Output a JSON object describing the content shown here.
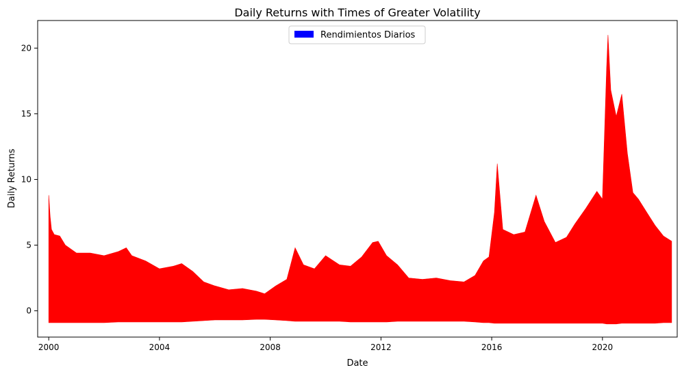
{
  "chart_data": {
    "type": "area",
    "title": "Daily Returns with Times of Greater Volatility",
    "xlabel": "Date",
    "ylabel": "Daily Returns",
    "xlim": [
      1999.6,
      2022.7
    ],
    "ylim": [
      -2.0,
      22.1
    ],
    "x_ticks": [
      "2000",
      "2004",
      "2008",
      "2012",
      "2016",
      "2020"
    ],
    "x_tick_values": [
      2000,
      2004,
      2008,
      2012,
      2016,
      2020
    ],
    "y_ticks": [
      "0",
      "5",
      "10",
      "15",
      "20"
    ],
    "y_tick_values": [
      0,
      5,
      10,
      15,
      20
    ],
    "grid": false,
    "legend": {
      "position": "top-center",
      "entries": [
        {
          "label": "Rendimientos Diarios",
          "color": "#0000ff"
        }
      ]
    },
    "colors": {
      "fill": "#ff0000",
      "legend_patch": "#0000ff"
    },
    "series": [
      {
        "name": "Rendimientos Diarios",
        "x": [
          2000.0,
          2000.05,
          2000.1,
          2000.2,
          2000.4,
          2000.6,
          2001.0,
          2001.5,
          2002.0,
          2002.5,
          2002.8,
          2003.0,
          2003.5,
          2004.0,
          2004.5,
          2004.8,
          2005.2,
          2005.6,
          2006.0,
          2006.5,
          2007.0,
          2007.5,
          2007.8,
          2008.2,
          2008.6,
          2008.9,
          2009.2,
          2009.6,
          2010.0,
          2010.5,
          2010.9,
          2011.3,
          2011.7,
          2011.9,
          2012.2,
          2012.6,
          2013.0,
          2013.5,
          2014.0,
          2014.5,
          2015.0,
          2015.4,
          2015.7,
          2015.9,
          2016.1,
          2016.2,
          2016.4,
          2016.8,
          2017.2,
          2017.6,
          2017.9,
          2018.3,
          2018.7,
          2019.0,
          2019.4,
          2019.8,
          2020.0,
          2020.15,
          2020.2,
          2020.3,
          2020.5,
          2020.7,
          2020.9,
          2021.1,
          2021.3,
          2021.6,
          2021.9,
          2022.2,
          2022.5
        ],
        "high": [
          8.8,
          7.2,
          6.2,
          5.8,
          5.7,
          5.0,
          4.4,
          4.4,
          4.2,
          4.5,
          4.8,
          4.2,
          3.8,
          3.2,
          3.4,
          3.6,
          3.0,
          2.2,
          1.9,
          1.6,
          1.7,
          1.5,
          1.3,
          1.9,
          2.4,
          4.8,
          3.5,
          3.2,
          4.2,
          3.5,
          3.4,
          4.1,
          5.2,
          5.3,
          4.2,
          3.5,
          2.5,
          2.4,
          2.5,
          2.3,
          2.2,
          2.7,
          3.8,
          4.1,
          7.5,
          11.2,
          6.2,
          5.8,
          6.0,
          8.8,
          6.8,
          5.2,
          5.6,
          6.6,
          7.8,
          9.1,
          8.5,
          18.5,
          21.0,
          16.8,
          14.8,
          16.5,
          12.0,
          9.0,
          8.5,
          7.5,
          6.5,
          5.7,
          5.3
        ],
        "low": [
          -0.9,
          -0.9,
          -0.9,
          -0.9,
          -0.9,
          -0.9,
          -0.9,
          -0.9,
          -0.9,
          -0.85,
          -0.85,
          -0.85,
          -0.85,
          -0.85,
          -0.85,
          -0.85,
          -0.8,
          -0.75,
          -0.7,
          -0.7,
          -0.7,
          -0.65,
          -0.65,
          -0.7,
          -0.75,
          -0.8,
          -0.8,
          -0.8,
          -0.8,
          -0.8,
          -0.85,
          -0.85,
          -0.85,
          -0.85,
          -0.85,
          -0.8,
          -0.8,
          -0.8,
          -0.8,
          -0.8,
          -0.8,
          -0.85,
          -0.9,
          -0.9,
          -0.95,
          -0.95,
          -0.95,
          -0.95,
          -0.95,
          -0.95,
          -0.95,
          -0.95,
          -0.95,
          -0.95,
          -0.95,
          -0.95,
          -0.95,
          -1.0,
          -1.0,
          -1.0,
          -1.0,
          -0.95,
          -0.95,
          -0.95,
          -0.95,
          -0.95,
          -0.95,
          -0.9,
          -0.9
        ]
      }
    ]
  }
}
